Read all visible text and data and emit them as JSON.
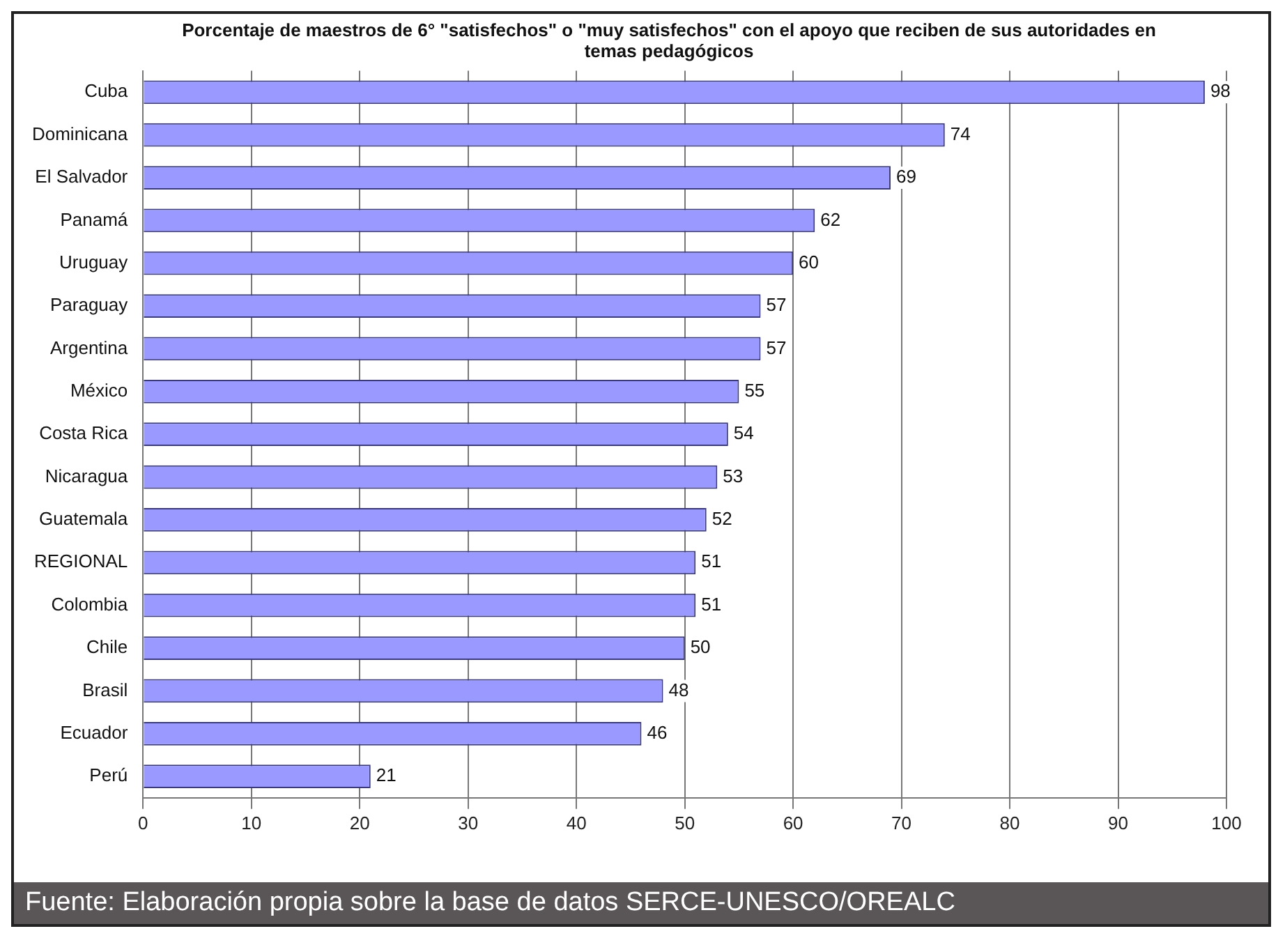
{
  "chart_data": {
    "type": "bar",
    "orientation": "horizontal",
    "title": "Porcentaje de maestros de 6° \"satisfechos\" o \"muy satisfechos\" con el apoyo que reciben de sus autoridades en temas pedagógicos",
    "categories": [
      "Cuba",
      "Dominicana",
      "El Salvador",
      "Panamá",
      "Uruguay",
      "Paraguay",
      "Argentina",
      "México",
      "Costa Rica",
      "Nicaragua",
      "Guatemala",
      "REGIONAL",
      "Colombia",
      "Chile",
      "Brasil",
      "Ecuador",
      "Perú"
    ],
    "values": [
      98,
      74,
      69,
      62,
      60,
      57,
      57,
      55,
      54,
      53,
      52,
      51,
      51,
      50,
      48,
      46,
      21
    ],
    "color": "#9999ff",
    "xlim": [
      0,
      100
    ],
    "xticks": [
      0,
      10,
      20,
      30,
      40,
      50,
      60,
      70,
      80,
      90,
      100
    ],
    "grid": "x",
    "legend": false,
    "data_labels": true,
    "annotations": [
      "Fuente: Elaboración propia sobre la base de datos SERCE-UNESCO/OREALC"
    ]
  }
}
